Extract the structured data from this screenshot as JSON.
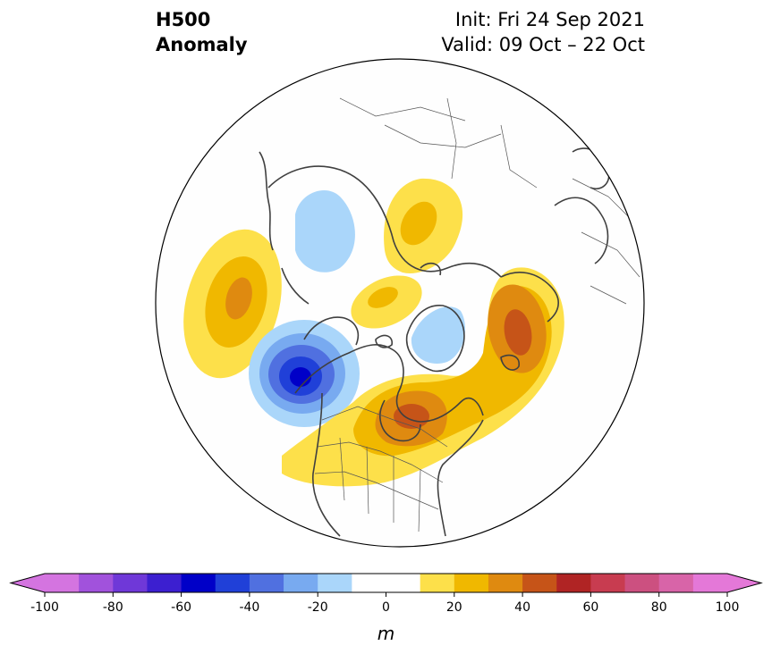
{
  "title": {
    "variable": "H500",
    "field": "Anomaly",
    "init": "Init: Fri 24 Sep 2021",
    "valid": "Valid: 09 Oct – 22 Oct"
  },
  "colorbar": {
    "label": "m",
    "ticks": [
      "-100",
      "-80",
      "-60",
      "-40",
      "-20",
      "0",
      "20",
      "40",
      "60",
      "80",
      "100"
    ],
    "tick_values": [
      -100,
      -80,
      -60,
      -40,
      -20,
      0,
      20,
      40,
      60,
      80,
      100
    ],
    "range": [
      -100,
      100
    ],
    "extend": "both",
    "step": 10,
    "colors": [
      "#d474e0",
      "#a152dc",
      "#6f38d8",
      "#3c1fd0",
      "#0000c8",
      "#2040d8",
      "#5070e0",
      "#78aaf0",
      "#aad6fa",
      "#ffffff",
      "#ffffff",
      "#fde04a",
      "#f0b800",
      "#df8a10",
      "#c65418",
      "#b02424",
      "#c83c50",
      "#cc5080",
      "#d864a8",
      "#e478d8"
    ]
  },
  "map": {
    "projection": "north-polar-stereographic",
    "features": [
      {
        "name": "anomaly-positive-north-pacific",
        "sign": "positive",
        "peak_m": 30
      },
      {
        "name": "anomaly-negative-gulf-of-alaska",
        "sign": "negative",
        "peak_m": -50
      },
      {
        "name": "anomaly-negative-east-siberia",
        "sign": "negative",
        "peak_m": -20
      },
      {
        "name": "anomaly-negative-greenland",
        "sign": "negative",
        "peak_m": -20
      },
      {
        "name": "anomaly-positive-east-siberia-arctic",
        "sign": "positive",
        "peak_m": 20
      },
      {
        "name": "anomaly-positive-arctic-ocean",
        "sign": "positive",
        "peak_m": 30
      },
      {
        "name": "anomaly-positive-central-canada",
        "sign": "positive",
        "peak_m": 50
      },
      {
        "name": "anomaly-positive-north-atlantic",
        "sign": "positive",
        "peak_m": 50
      }
    ]
  }
}
